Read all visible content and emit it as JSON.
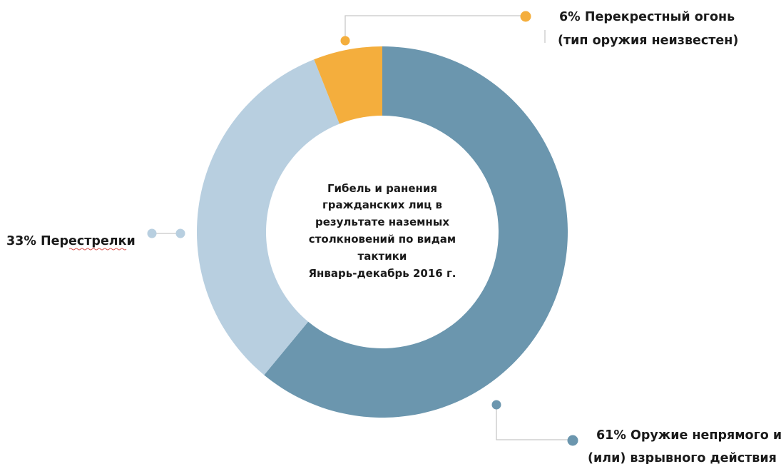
{
  "chart_data": {
    "type": "pie",
    "donut": true,
    "title_lines": [
      "Гибель и ранения",
      "гражданских лиц в",
      "результате наземных",
      "столкновений по видам",
      "тактики",
      "Январь-декабрь 2016 г."
    ],
    "series": [
      {
        "percent_label": "61%",
        "name_lines": [
          "Оружие непрямого и",
          "(или) взрывного действия"
        ],
        "value": 61,
        "color": "#6b96ae"
      },
      {
        "percent_label": "33%",
        "name_lines": [
          "Перестрелки"
        ],
        "value": 33,
        "color": "#b8cfe0"
      },
      {
        "percent_label": "6%",
        "name_lines": [
          "Перекрестный огонь",
          "(тип оружия неизвестен)"
        ],
        "value": 6,
        "color": "#f4ae3d"
      }
    ]
  }
}
